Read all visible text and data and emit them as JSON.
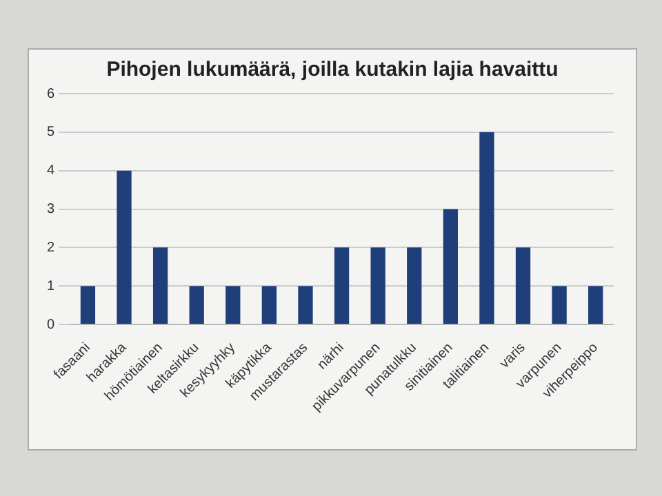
{
  "chart_data": {
    "type": "bar",
    "title": "Pihojen lukumäärä, joilla kutakin lajia havaittu",
    "categories": [
      "fasaani",
      "harakka",
      "hömötiainen",
      "keltasirkku",
      "kesykyyhky",
      "käpytikka",
      "mustarastas",
      "närhi",
      "pikkuvarpunen",
      "punatulkku",
      "sinitiainen",
      "talitiainen",
      "varis",
      "varpunen",
      "viherpeippo"
    ],
    "values": [
      1,
      4,
      2,
      1,
      1,
      1,
      1,
      2,
      2,
      2,
      3,
      5,
      2,
      1,
      1
    ],
    "color": "#1f3f7a",
    "ylim": [
      0,
      6
    ],
    "yticks": [
      0,
      1,
      2,
      3,
      4,
      5,
      6
    ],
    "grid": "y",
    "legend": false
  }
}
